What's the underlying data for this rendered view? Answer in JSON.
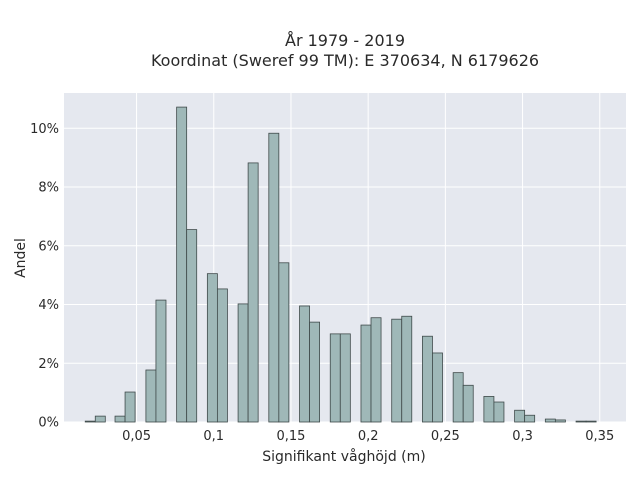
{
  "chart_data": {
    "type": "bar",
    "title": "År 1979 - 2019",
    "subtitle": "Koordinat (Sweref 99 TM): E 370634, N 6179626",
    "xlabel": "Signifikant våghöjd (m)",
    "ylabel": "Andel",
    "xlim": [
      0.003,
      0.367
    ],
    "ylim": [
      0,
      0.112
    ],
    "x_ticks": [
      {
        "value": 0.05,
        "label": "0,05"
      },
      {
        "value": 0.1,
        "label": "0,1"
      },
      {
        "value": 0.15,
        "label": "0,15"
      },
      {
        "value": 0.2,
        "label": "0,2"
      },
      {
        "value": 0.25,
        "label": "0,25"
      },
      {
        "value": 0.3,
        "label": "0,3"
      },
      {
        "value": 0.35,
        "label": "0,35"
      }
    ],
    "y_ticks": [
      {
        "value": 0,
        "label": "0%"
      },
      {
        "value": 0.02,
        "label": "2%"
      },
      {
        "value": 0.04,
        "label": "4%"
      },
      {
        "value": 0.06,
        "label": "6%"
      },
      {
        "value": 0.08,
        "label": "8%"
      },
      {
        "value": 0.1,
        "label": "10%"
      }
    ],
    "bin_width": 0.0065,
    "grid": true,
    "bar_color": "#9fb8b8",
    "bar_edge_color": "#3f4a4a",
    "plot_bg": "#e5e8ef",
    "grid_color": "#ffffff",
    "bars": [
      {
        "x": 0.02,
        "y": 0.0003
      },
      {
        "x": 0.0265,
        "y": 0.002
      },
      {
        "x": 0.0393,
        "y": 0.002
      },
      {
        "x": 0.0458,
        "y": 0.0102
      },
      {
        "x": 0.0593,
        "y": 0.0177
      },
      {
        "x": 0.0658,
        "y": 0.0415
      },
      {
        "x": 0.0792,
        "y": 0.1072
      },
      {
        "x": 0.0857,
        "y": 0.0655
      },
      {
        "x": 0.0991,
        "y": 0.0505
      },
      {
        "x": 0.1056,
        "y": 0.0453
      },
      {
        "x": 0.119,
        "y": 0.0402
      },
      {
        "x": 0.1255,
        "y": 0.0882
      },
      {
        "x": 0.1389,
        "y": 0.0983
      },
      {
        "x": 0.1454,
        "y": 0.0542
      },
      {
        "x": 0.1588,
        "y": 0.0395
      },
      {
        "x": 0.1653,
        "y": 0.034
      },
      {
        "x": 0.1787,
        "y": 0.03
      },
      {
        "x": 0.1852,
        "y": 0.03
      },
      {
        "x": 0.1986,
        "y": 0.033
      },
      {
        "x": 0.2051,
        "y": 0.0355
      },
      {
        "x": 0.2185,
        "y": 0.035
      },
      {
        "x": 0.225,
        "y": 0.036
      },
      {
        "x": 0.2384,
        "y": 0.0292
      },
      {
        "x": 0.2449,
        "y": 0.0235
      },
      {
        "x": 0.2583,
        "y": 0.0168
      },
      {
        "x": 0.2648,
        "y": 0.0125
      },
      {
        "x": 0.2782,
        "y": 0.0087
      },
      {
        "x": 0.2847,
        "y": 0.0068
      },
      {
        "x": 0.2981,
        "y": 0.004
      },
      {
        "x": 0.3046,
        "y": 0.0023
      },
      {
        "x": 0.318,
        "y": 0.001
      },
      {
        "x": 0.3245,
        "y": 0.0007
      },
      {
        "x": 0.3379,
        "y": 0.0003
      },
      {
        "x": 0.3444,
        "y": 0.0003
      }
    ]
  }
}
